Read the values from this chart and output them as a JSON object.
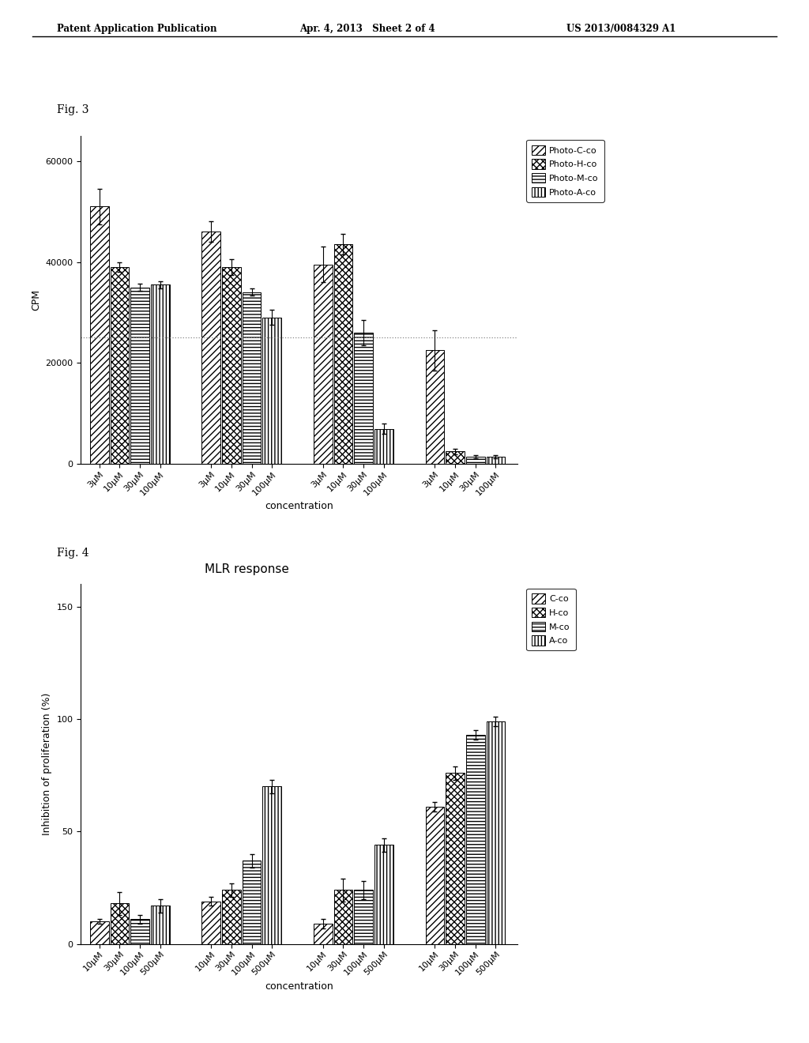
{
  "fig3": {
    "title": "",
    "ylabel": "CPM",
    "xlabel": "concentration",
    "ylim": [
      0,
      65000
    ],
    "yticks": [
      0,
      20000,
      40000,
      60000
    ],
    "group_names": [
      "Photo-C-co",
      "Photo-H-co",
      "Photo-M-co",
      "Photo-A-co"
    ],
    "conc_labels": [
      "3μM",
      "10μM",
      "30μM",
      "100μM"
    ],
    "values": [
      [
        51000,
        39000,
        35000,
        35500
      ],
      [
        46000,
        39000,
        34000,
        29000
      ],
      [
        39500,
        43500,
        26000,
        7000
      ],
      [
        22500,
        2500,
        1500,
        1500
      ]
    ],
    "errors": [
      [
        3500,
        1000,
        700,
        700
      ],
      [
        2000,
        1500,
        700,
        1500
      ],
      [
        3500,
        2000,
        2500,
        1000
      ],
      [
        4000,
        500,
        300,
        300
      ]
    ],
    "legend_labels": [
      "Photo-C-co",
      "Photo-H-co",
      "Photo-M-co",
      "Photo-A-co"
    ],
    "dotted_line": 25000
  },
  "fig4": {
    "title": "MLR response",
    "ylabel": "Inhibition of proliferation (%)",
    "xlabel": "concentration",
    "ylim": [
      0,
      160
    ],
    "yticks": [
      0,
      50,
      100,
      150
    ],
    "group_names": [
      "C-co",
      "H-co",
      "M-co",
      "A-co"
    ],
    "conc_labels": [
      "10μM",
      "30μM",
      "100μM",
      "500μM"
    ],
    "values": [
      [
        10,
        18,
        11,
        17
      ],
      [
        19,
        24,
        37,
        70
      ],
      [
        9,
        24,
        24,
        44
      ],
      [
        61,
        76,
        93,
        99
      ]
    ],
    "errors": [
      [
        1,
        5,
        2,
        3
      ],
      [
        2,
        3,
        3,
        3
      ],
      [
        2,
        5,
        4,
        3
      ],
      [
        2,
        3,
        2,
        2
      ]
    ],
    "legend_labels": [
      "C-co",
      "H-co",
      "M-co",
      "A-co"
    ]
  },
  "header_left": "Patent Application Publication",
  "header_mid": "Apr. 4, 2013   Sheet 2 of 4",
  "header_right": "US 2013/0084329 A1",
  "fig3_label": "Fig. 3",
  "fig4_label": "Fig. 4",
  "font_size": 8,
  "title_font_size": 11
}
